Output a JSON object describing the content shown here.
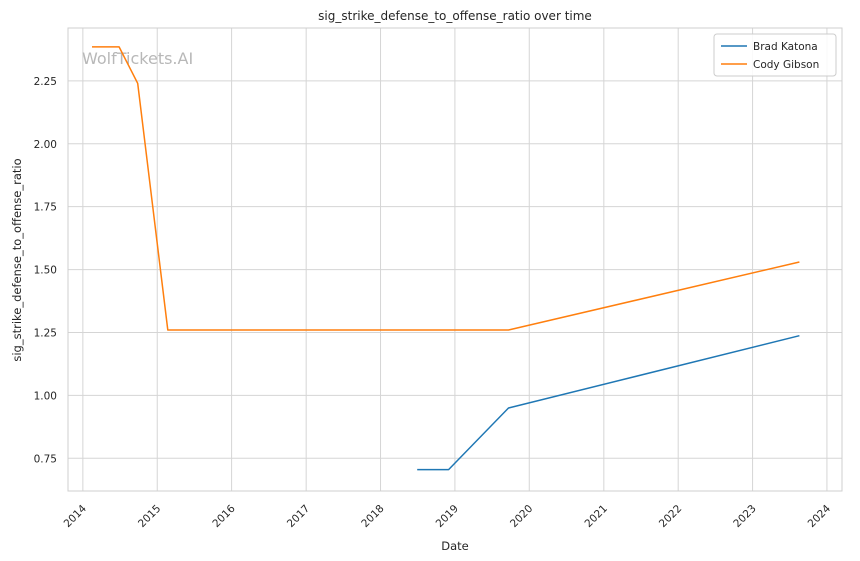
{
  "watermark": "WolfTickets.AI",
  "chart_data": {
    "type": "line",
    "title": "sig_strike_defense_to_offense_ratio over time",
    "xlabel": "Date",
    "ylabel": "sig_strike_defense_to_offense_ratio",
    "x_axis_type": "date",
    "xlim": [
      "2013-10-20",
      "2024-03-15"
    ],
    "ylim": [
      0.62,
      2.46
    ],
    "x_ticks": [
      "2014",
      "2015",
      "2016",
      "2017",
      "2018",
      "2019",
      "2020",
      "2021",
      "2022",
      "2023",
      "2024"
    ],
    "y_ticks": [
      "0.75",
      "1.00",
      "1.25",
      "1.50",
      "1.75",
      "2.00",
      "2.25"
    ],
    "grid": true,
    "legend_position": "top-right",
    "series": [
      {
        "name": "Brad Katona",
        "color": "#1f77b4",
        "points": [
          {
            "x": "2018-06-30",
            "y": 0.705
          },
          {
            "x": "2018-12-01",
            "y": 0.705
          },
          {
            "x": "2019-09-21",
            "y": 0.95
          },
          {
            "x": "2023-08-19",
            "y": 1.237
          }
        ]
      },
      {
        "name": "Cody Gibson",
        "color": "#ff7f0e",
        "points": [
          {
            "x": "2014-02-15",
            "y": 2.385
          },
          {
            "x": "2014-06-28",
            "y": 2.385
          },
          {
            "x": "2014-09-27",
            "y": 2.24
          },
          {
            "x": "2015-02-22",
            "y": 1.26
          },
          {
            "x": "2019-09-21",
            "y": 1.26
          },
          {
            "x": "2023-08-19",
            "y": 1.53
          }
        ]
      }
    ]
  }
}
